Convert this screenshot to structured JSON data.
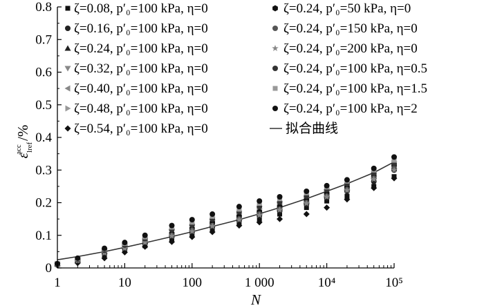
{
  "chart_data": {
    "type": "scatter",
    "xlabel": "N",
    "ylabel": "ε_lref^acc /%",
    "x_scale": "log",
    "xlim": [
      1,
      100000
    ],
    "ylim": [
      0,
      0.8
    ],
    "x_ticks": [
      {
        "value": 1,
        "label": "1"
      },
      {
        "value": 10,
        "label": "10"
      },
      {
        "value": 100,
        "label": "100"
      },
      {
        "value": 1000,
        "label": "1 000"
      },
      {
        "value": 10000,
        "label": "10⁴"
      },
      {
        "value": 100000,
        "label": "10⁵"
      }
    ],
    "y_ticks": [
      {
        "value": 0,
        "label": "0"
      },
      {
        "value": 0.1,
        "label": "0.1"
      },
      {
        "value": 0.2,
        "label": "0.2"
      },
      {
        "value": 0.3,
        "label": "0.3"
      },
      {
        "value": 0.4,
        "label": "0.4"
      },
      {
        "value": 0.5,
        "label": "0.5"
      },
      {
        "value": 0.6,
        "label": "0.6"
      },
      {
        "value": 0.7,
        "label": "0.7"
      },
      {
        "value": 0.8,
        "label": "0.8"
      }
    ],
    "grid": false,
    "legend_position": "top",
    "fit_curve": {
      "name": "拟合曲线",
      "x": [
        1,
        2,
        5,
        10,
        20,
        50,
        100,
        200,
        500,
        1000,
        2000,
        5000,
        10000,
        20000,
        50000,
        100000
      ],
      "y": [
        0.025,
        0.035,
        0.05,
        0.063,
        0.077,
        0.096,
        0.111,
        0.127,
        0.148,
        0.166,
        0.185,
        0.212,
        0.235,
        0.258,
        0.292,
        0.325
      ]
    },
    "series": [
      {
        "name": "ζ=0.08, p′₀=100 kPa, η=0",
        "marker": "square",
        "color": "#111111",
        "x": [
          1,
          2,
          5,
          10,
          20,
          50,
          100,
          200,
          500,
          1000,
          2000,
          5000,
          10000,
          20000,
          50000,
          100000
        ],
        "y": [
          0.01,
          0.02,
          0.04,
          0.055,
          0.068,
          0.085,
          0.1,
          0.115,
          0.135,
          0.15,
          0.165,
          0.185,
          0.205,
          0.22,
          0.25,
          0.28
        ]
      },
      {
        "name": "ζ=0.16, p′₀=100 kPa, η=0",
        "marker": "circle",
        "color": "#222222",
        "x": [
          1,
          2,
          5,
          10,
          20,
          50,
          100,
          200,
          500,
          1000,
          2000,
          5000,
          10000,
          20000,
          50000,
          100000
        ],
        "y": [
          0.01,
          0.022,
          0.045,
          0.06,
          0.075,
          0.095,
          0.11,
          0.125,
          0.145,
          0.16,
          0.175,
          0.195,
          0.215,
          0.235,
          0.265,
          0.3
        ]
      },
      {
        "name": "ζ=0.24, p′₀=100 kPa, η=0",
        "marker": "triangle-up",
        "color": "#222222",
        "x": [
          1,
          2,
          5,
          10,
          20,
          50,
          100,
          200,
          500,
          1000,
          2000,
          5000,
          10000,
          20000,
          50000,
          100000
        ],
        "y": [
          0.012,
          0.025,
          0.05,
          0.065,
          0.082,
          0.105,
          0.12,
          0.135,
          0.155,
          0.17,
          0.185,
          0.205,
          0.225,
          0.245,
          0.28,
          0.31
        ]
      },
      {
        "name": "ζ=0.32, p′₀=100 kPa, η=0",
        "marker": "triangle-down",
        "color": "#888888",
        "x": [
          1,
          2,
          5,
          10,
          20,
          50,
          100,
          200,
          500,
          1000,
          2000,
          5000,
          10000,
          20000,
          50000,
          100000
        ],
        "y": [
          0.012,
          0.025,
          0.052,
          0.068,
          0.085,
          0.11,
          0.125,
          0.14,
          0.16,
          0.175,
          0.19,
          0.21,
          0.23,
          0.25,
          0.285,
          0.32
        ]
      },
      {
        "name": "ζ=0.40, p′₀=100 kPa, η=0",
        "marker": "triangle-left",
        "color": "#888888",
        "x": [
          1,
          2,
          5,
          10,
          20,
          50,
          100,
          200,
          500,
          1000,
          2000,
          5000,
          10000,
          20000,
          50000,
          100000
        ],
        "y": [
          0.012,
          0.026,
          0.055,
          0.07,
          0.088,
          0.115,
          0.13,
          0.15,
          0.17,
          0.185,
          0.2,
          0.22,
          0.24,
          0.26,
          0.295,
          0.33
        ]
      },
      {
        "name": "ζ=0.48, p′₀=100 kPa, η=0",
        "marker": "triangle-right",
        "color": "#999999",
        "x": [
          1,
          2,
          5,
          10,
          20,
          50,
          100,
          200,
          500,
          1000,
          2000,
          5000,
          10000,
          20000,
          50000,
          100000
        ],
        "y": [
          0.013,
          0.027,
          0.058,
          0.073,
          0.092,
          0.12,
          0.135,
          0.155,
          0.175,
          0.19,
          0.205,
          0.225,
          0.245,
          0.265,
          0.3,
          0.335
        ]
      },
      {
        "name": "ζ=0.54, p′₀=100 kPa, η=0",
        "marker": "diamond",
        "color": "#111111",
        "x": [
          1,
          2,
          5,
          10,
          20,
          50,
          100,
          200,
          500,
          1000,
          2000,
          5000,
          10000,
          20000,
          50000,
          100000
        ],
        "y": [
          0.008,
          0.015,
          0.03,
          0.048,
          0.065,
          0.08,
          0.095,
          0.11,
          0.13,
          0.14,
          0.15,
          0.165,
          0.185,
          0.21,
          0.245,
          0.275
        ]
      },
      {
        "name": "ζ=0.24, p′₀=50 kPa, η=0",
        "marker": "hexagon",
        "color": "#111111",
        "x": [
          1,
          2,
          5,
          10,
          20,
          50,
          100,
          200,
          500,
          1000,
          2000,
          5000,
          10000,
          20000,
          50000,
          100000
        ],
        "y": [
          0.012,
          0.024,
          0.05,
          0.065,
          0.083,
          0.105,
          0.12,
          0.138,
          0.158,
          0.172,
          0.188,
          0.208,
          0.228,
          0.248,
          0.282,
          0.315
        ]
      },
      {
        "name": "ζ=0.24, p′₀=150 kPa, η=0",
        "marker": "circle",
        "color": "#555555",
        "x": [
          1,
          2,
          5,
          10,
          20,
          50,
          100,
          200,
          500,
          1000,
          2000,
          5000,
          10000,
          20000,
          50000,
          100000
        ],
        "y": [
          0.011,
          0.023,
          0.048,
          0.062,
          0.08,
          0.1,
          0.115,
          0.13,
          0.15,
          0.165,
          0.18,
          0.2,
          0.22,
          0.24,
          0.275,
          0.305
        ]
      },
      {
        "name": "ζ=0.24, p′₀=200 kPa, η=0",
        "marker": "star",
        "color": "#888888",
        "x": [
          1,
          2,
          5,
          10,
          20,
          50,
          100,
          200,
          500,
          1000,
          2000,
          5000,
          10000,
          20000,
          50000,
          100000
        ],
        "y": [
          0.011,
          0.022,
          0.046,
          0.06,
          0.078,
          0.098,
          0.112,
          0.128,
          0.148,
          0.162,
          0.178,
          0.198,
          0.218,
          0.238,
          0.272,
          0.3
        ]
      },
      {
        "name": "ζ=0.24, p′₀=100 kPa, η=0.5",
        "marker": "circle",
        "color": "#333333",
        "x": [
          1,
          2,
          5,
          10,
          20,
          50,
          100,
          200,
          500,
          1000,
          2000,
          5000,
          10000,
          20000,
          50000,
          100000
        ],
        "y": [
          0.012,
          0.026,
          0.054,
          0.07,
          0.09,
          0.118,
          0.132,
          0.15,
          0.172,
          0.188,
          0.202,
          0.22,
          0.24,
          0.258,
          0.29,
          0.32
        ]
      },
      {
        "name": "ζ=0.24, p′₀=100 kPa, η=1.5",
        "marker": "square",
        "color": "#999999",
        "x": [
          1,
          2,
          5,
          10,
          20,
          50,
          100,
          200,
          500,
          1000,
          2000,
          5000,
          10000,
          20000,
          50000,
          100000
        ],
        "y": [
          0.013,
          0.028,
          0.058,
          0.075,
          0.095,
          0.125,
          0.14,
          0.158,
          0.18,
          0.198,
          0.212,
          0.23,
          0.248,
          0.266,
          0.3,
          0.33
        ]
      },
      {
        "name": "ζ=0.24, p′₀=100 kPa, η=2",
        "marker": "circle",
        "color": "#111111",
        "x": [
          1,
          2,
          5,
          10,
          20,
          50,
          100,
          200,
          500,
          1000,
          2000,
          5000,
          10000,
          20000,
          50000,
          100000
        ],
        "y": [
          0.013,
          0.03,
          0.06,
          0.078,
          0.1,
          0.13,
          0.148,
          0.165,
          0.188,
          0.205,
          0.218,
          0.235,
          0.252,
          0.27,
          0.305,
          0.34
        ]
      }
    ]
  }
}
